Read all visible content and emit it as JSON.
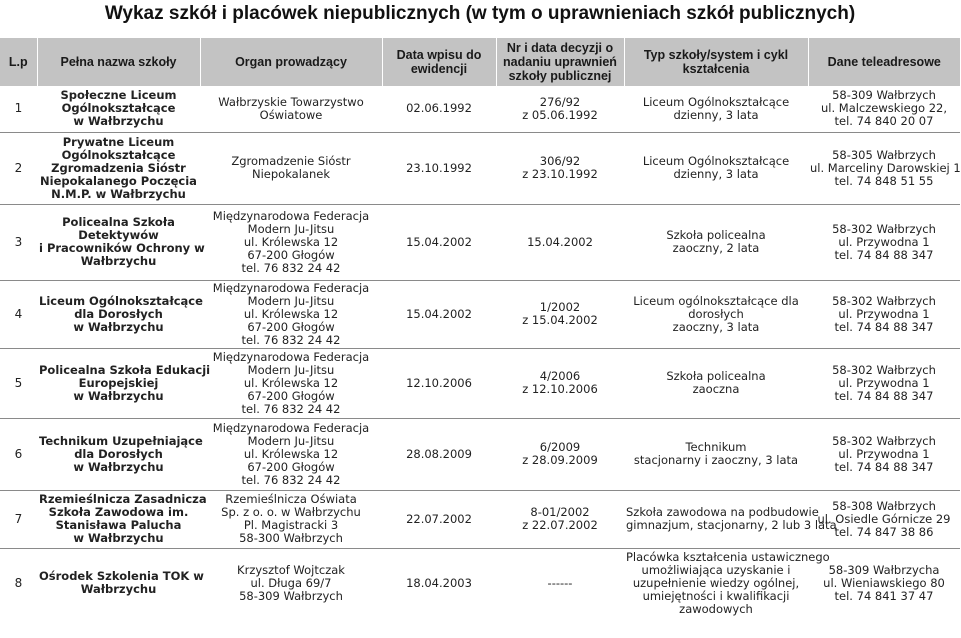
{
  "title": "Wykaz szkół i placówek niepublicznych (w tym o uprawnieniach szkół publicznych)",
  "headers": {
    "lp": [
      "L.p"
    ],
    "name": [
      "Pełna nazwa szkoły"
    ],
    "organ": [
      "Organ prowadzący"
    ],
    "date": [
      "Data wpisu do",
      "ewidencji"
    ],
    "decision": [
      "Nr i data decyzji o",
      "nadaniu uprawnień",
      "szkoły publicznej"
    ],
    "type": [
      "Typ szkoły/system i cykl",
      "kształcenia"
    ],
    "contact": [
      "Dane teleadresowe"
    ]
  },
  "rows": [
    {
      "lp": [
        "1"
      ],
      "name": [
        "Społeczne Liceum",
        "Ogólnokształcące",
        "w Wałbrzychu"
      ],
      "organ": [
        "Wałbrzyskie Towarzystwo",
        "Oświatowe"
      ],
      "date": [
        "02.06.1992"
      ],
      "decision": [
        "276/92",
        "z 05.06.1992"
      ],
      "type": [
        "Liceum Ogólnokształcące",
        "dzienny, 3 lata"
      ],
      "contact": [
        "58-309 Wałbrzych",
        "ul. Malczewskiego 22,",
        "tel. 74 840 20 07"
      ]
    },
    {
      "lp": [
        "2"
      ],
      "name": [
        "Prywatne Liceum",
        "Ogólnokształcące",
        "Zgromadzenia Sióstr",
        "Niepokalanego Poczęcia",
        "N.M.P. w Wałbrzychu"
      ],
      "organ": [
        "Zgromadzenie Sióstr",
        "Niepokalanek"
      ],
      "date": [
        "23.10.1992"
      ],
      "decision": [
        "306/92",
        "z 23.10.1992"
      ],
      "type": [
        "Liceum Ogólnokształcące",
        "dzienny, 3 lata"
      ],
      "contact": [
        "58-305 Wałbrzych",
        "ul. Marceliny Darowskiej 1",
        "tel. 74 848 51 55"
      ]
    },
    {
      "lp": [
        "3"
      ],
      "name": [
        "Policealna Szkoła",
        "Detektywów",
        "i Pracowników Ochrony w",
        "Wałbrzychu"
      ],
      "organ": [
        "Międzynarodowa Federacja",
        "Modern Ju-Jitsu",
        "ul. Królewska 12",
        "67-200 Głogów",
        "tel. 76 832 24 42"
      ],
      "date": [
        "15.04.2002"
      ],
      "decision": [
        "15.04.2002"
      ],
      "type": [
        "Szkoła policealna",
        "zaoczny, 2 lata"
      ],
      "contact": [
        "58-302 Wałbrzych",
        "ul. Przywodna 1",
        "tel. 74 84 88 347"
      ]
    },
    {
      "lp": [
        "4"
      ],
      "name": [
        "Liceum Ogólnokształcące",
        "dla Dorosłych",
        "w Wałbrzychu"
      ],
      "organ": [
        "Międzynarodowa Federacja",
        "Modern Ju-Jitsu",
        "ul. Królewska 12",
        "67-200 Głogów",
        "tel. 76 832 24 42"
      ],
      "date": [
        "15.04.2002"
      ],
      "decision": [
        "1/2002",
        "z 15.04.2002"
      ],
      "type": [
        "Liceum ogólnokształcące dla",
        "dorosłych",
        "zaoczny, 3 lata"
      ],
      "contact": [
        "58-302 Wałbrzych",
        "ul. Przywodna 1",
        "tel. 74 84 88 347"
      ]
    },
    {
      "lp": [
        "5"
      ],
      "name": [
        "Policealna Szkoła Edukacji",
        "Europejskiej",
        "w Wałbrzychu"
      ],
      "organ": [
        "Międzynarodowa Federacja",
        "Modern Ju-Jitsu",
        "ul. Królewska 12",
        "67-200 Głogów",
        "tel. 76 832 24 42"
      ],
      "date": [
        "12.10.2006"
      ],
      "decision": [
        "4/2006",
        "z 12.10.2006"
      ],
      "type": [
        "Szkoła policealna",
        "zaoczna"
      ],
      "contact": [
        "58-302 Wałbrzych",
        "ul. Przywodna 1",
        "tel. 74 84 88 347"
      ]
    },
    {
      "lp": [
        "6"
      ],
      "name": [
        "Technikum Uzupełniające",
        "dla Dorosłych",
        "w Wałbrzychu"
      ],
      "organ": [
        "Międzynarodowa Federacja",
        "Modern Ju-Jitsu",
        "ul. Królewska 12",
        "67-200 Głogów",
        "tel. 76 832 24 42"
      ],
      "date": [
        "28.08.2009"
      ],
      "decision": [
        "6/2009",
        "z 28.09.2009"
      ],
      "type": [
        "Technikum",
        "stacjonarny i zaoczny, 3 lata"
      ],
      "contact": [
        "58-302 Wałbrzych",
        "ul. Przywodna 1",
        "tel. 74 84 88 347"
      ]
    },
    {
      "lp": [
        "7"
      ],
      "name": [
        "Rzemieślnicza Zasadnicza",
        "Szkoła Zawodowa im.",
        "Stanisława Palucha",
        "w Wałbrzychu"
      ],
      "organ": [
        "Rzemieślnicza Oświata",
        "Sp. z o. o. w Wałbrzychu",
        "Pl. Magistracki 3",
        "58-300 Wałbrzych"
      ],
      "date": [
        "22.07.2002"
      ],
      "decision": [
        "8-01/2002",
        "z 22.07.2002"
      ],
      "type": [
        "Szkoła zawodowa na podbudowie",
        "gimnazjum, stacjonarny, 2 lub 3 lata"
      ],
      "contact": [
        "58-308 Wałbrzych",
        "ul. Osiedle Górnicze 29",
        "tel. 74 847 38 86"
      ]
    },
    {
      "lp": [
        "8"
      ],
      "name": [
        "Ośrodek Szkolenia TOK w",
        "Wałbrzychu"
      ],
      "organ": [
        "Krzysztof Wojtczak",
        "ul. Długa 69/7",
        "58-309 Wałbrzych"
      ],
      "date": [
        "18.04.2003"
      ],
      "decision": [
        "------"
      ],
      "type": [
        "Placówka kształcenia ustawicznego",
        "umożliwiająca uzyskanie i",
        "uzupełnienie wiedzy ogólnej,",
        "umiejętności i kwalifikacji",
        "zawodowych"
      ],
      "contact": [
        "58-309 Wałbrzycha",
        "ul. Wieniawskiego 80",
        "tel. 74 841 37 47"
      ]
    }
  ]
}
